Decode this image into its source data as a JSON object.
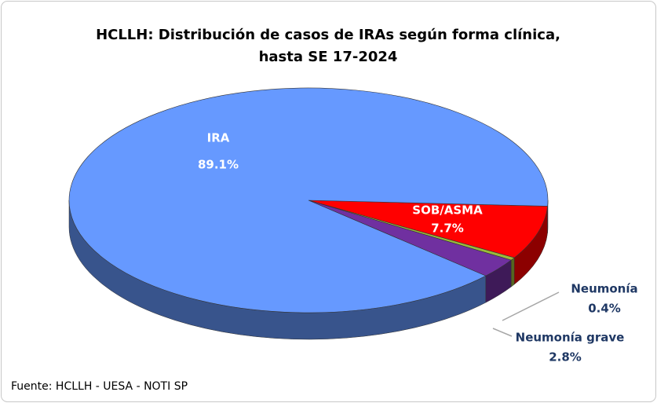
{
  "chart_data": {
    "type": "pie",
    "title": "HCLLH: Distribución de casos de IRAs según forma clínica,",
    "subtitle": "hasta SE 17-2024",
    "categories": [
      "SOB/ASMA",
      "Neumonía",
      "Neumonía grave",
      "IRA"
    ],
    "values": [
      7.7,
      0.4,
      2.8,
      89.1
    ],
    "value_labels": [
      "7.7%",
      "0.4%",
      "2.8%",
      "89.1%"
    ],
    "colors": [
      "#ff0000",
      "#9bbb3b",
      "#7030a0",
      "#6699ff"
    ],
    "source": "Fuente: HCLLH - UESA - NOTI SP"
  }
}
